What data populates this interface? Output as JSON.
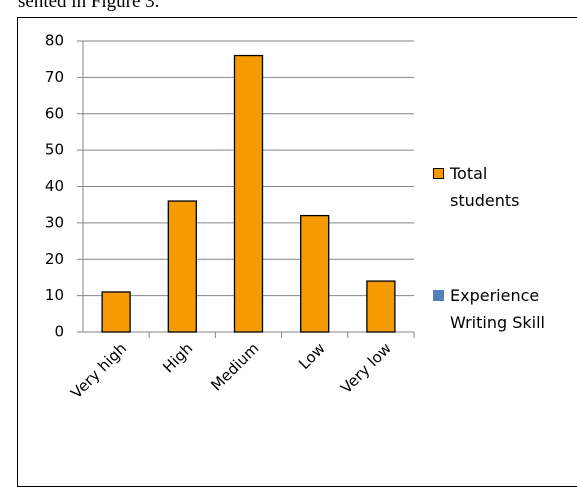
{
  "page_text": "sented in Figure 3.",
  "chart_data": {
    "type": "bar",
    "categories": [
      "Very high",
      "High",
      "Medium",
      "Low",
      "Very low"
    ],
    "series": [
      {
        "name": "Total students",
        "color": "#f59b00",
        "values": [
          11,
          36,
          76,
          32,
          14
        ]
      },
      {
        "name": "Experience Writing Skill",
        "color": "#4f81bd",
        "values": [
          null,
          null,
          null,
          null,
          null
        ]
      }
    ],
    "ylim": [
      0,
      80
    ],
    "yticks": [
      0,
      10,
      20,
      30,
      40,
      50,
      60,
      70,
      80
    ],
    "grid": true,
    "legend": "right"
  }
}
